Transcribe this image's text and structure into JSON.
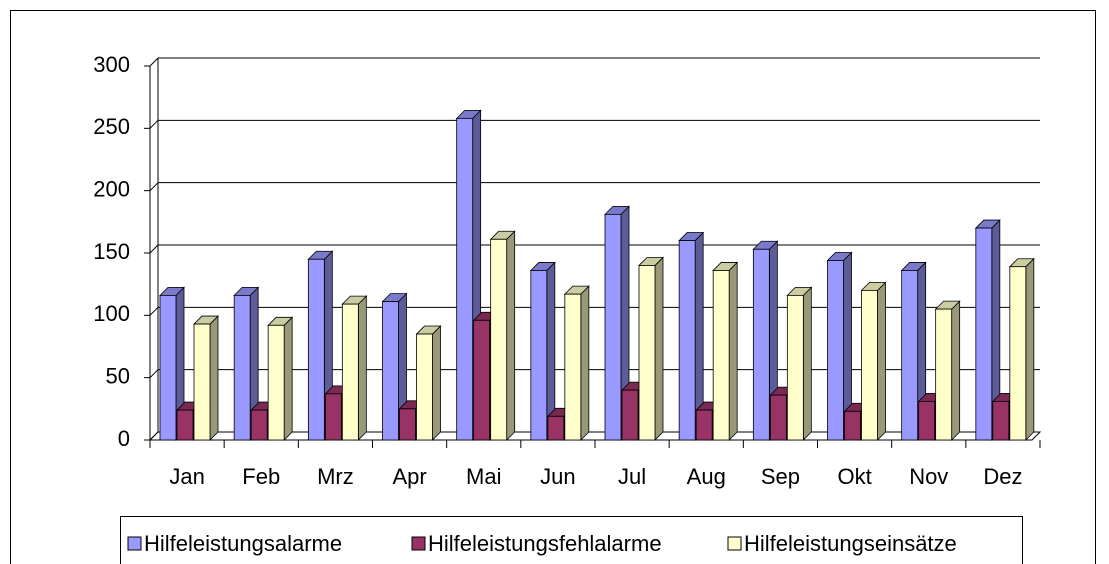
{
  "chart_data": {
    "type": "bar3d",
    "categories": [
      "Jan",
      "Feb",
      "Mrz",
      "Apr",
      "Mai",
      "Jun",
      "Jul",
      "Aug",
      "Sep",
      "Okt",
      "Nov",
      "Dez"
    ],
    "series": [
      {
        "name": "Hilfeleistungsalarme",
        "color": "#9999ff",
        "values": [
          116,
          116,
          145,
          111,
          258,
          136,
          181,
          160,
          153,
          144,
          136,
          170
        ]
      },
      {
        "name": "Hilfeleistungsfehlalarme",
        "color": "#993366",
        "values": [
          24,
          24,
          37,
          25,
          96,
          19,
          40,
          24,
          36,
          23,
          31,
          31
        ]
      },
      {
        "name": "Hilfeleistungseinsätze",
        "color": "#ffffcc",
        "values": [
          93,
          92,
          109,
          85,
          161,
          117,
          140,
          136,
          116,
          120,
          105,
          139
        ]
      }
    ],
    "ylim": [
      0,
      300
    ],
    "yticks": [
      0,
      50,
      100,
      150,
      200,
      250,
      300
    ],
    "grid": true,
    "legend": "bottom"
  }
}
